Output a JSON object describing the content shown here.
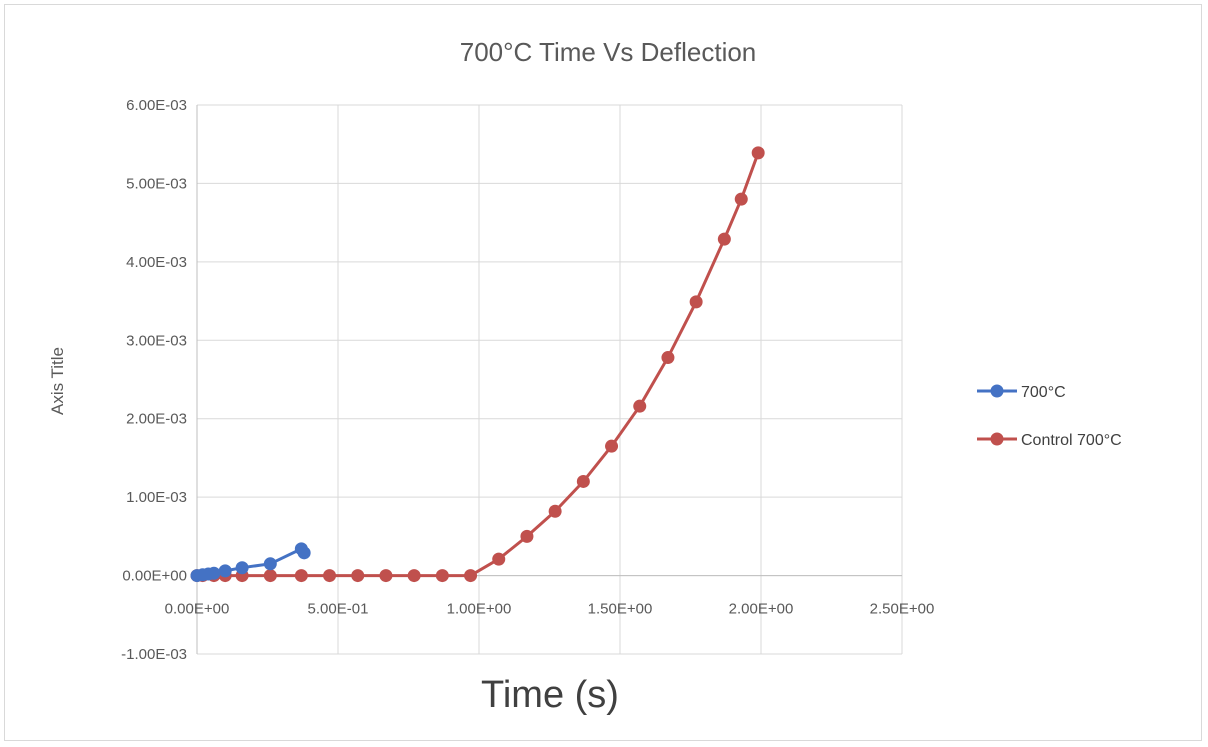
{
  "chart_data": {
    "type": "scatter",
    "title": "700°C Time Vs Deflection",
    "xlabel": "Time (s)",
    "ylabel": "Axis Title",
    "xlim": [
      0,
      2.5
    ],
    "ylim": [
      -0.001,
      0.006
    ],
    "x_ticks": [
      0,
      0.5,
      1.0,
      1.5,
      2.0,
      2.5
    ],
    "x_tick_labels": [
      "0.00E+00",
      "5.00E-01",
      "1.00E+00",
      "1.50E+00",
      "2.00E+00",
      "2.50E+00"
    ],
    "y_ticks": [
      -0.001,
      0,
      0.001,
      0.002,
      0.003,
      0.004,
      0.005,
      0.006
    ],
    "y_tick_labels": [
      "-1.00E-03",
      "0.00E+00",
      "1.00E-03",
      "2.00E-03",
      "3.00E-03",
      "4.00E-03",
      "5.00E-03",
      "6.00E-03"
    ],
    "grid": true,
    "legend_position": "right",
    "series": [
      {
        "name": "700°C",
        "color": "#4472c4",
        "x": [
          0.0,
          0.02,
          0.04,
          0.06,
          0.1,
          0.16,
          0.26,
          0.37,
          0.38
        ],
        "y": [
          0.0,
          1e-05,
          2e-05,
          3e-05,
          6e-05,
          0.0001,
          0.00015,
          0.00034,
          0.00029
        ]
      },
      {
        "name": "Control 700°C",
        "color": "#c0504d",
        "x": [
          0.0,
          0.02,
          0.06,
          0.1,
          0.16,
          0.26,
          0.37,
          0.47,
          0.57,
          0.67,
          0.77,
          0.87,
          0.97,
          1.07,
          1.17,
          1.27,
          1.37,
          1.47,
          1.57,
          1.67,
          1.77,
          1.87,
          1.93,
          1.99
        ],
        "y": [
          0.0,
          0.0,
          0.0,
          0.0,
          0.0,
          0.0,
          0.0,
          0.0,
          0.0,
          0.0,
          0.0,
          0.0,
          0.0,
          0.00021,
          0.0005,
          0.00082,
          0.0012,
          0.00165,
          0.00216,
          0.00278,
          0.00349,
          0.00429,
          0.0048,
          0.00539
        ]
      }
    ]
  }
}
